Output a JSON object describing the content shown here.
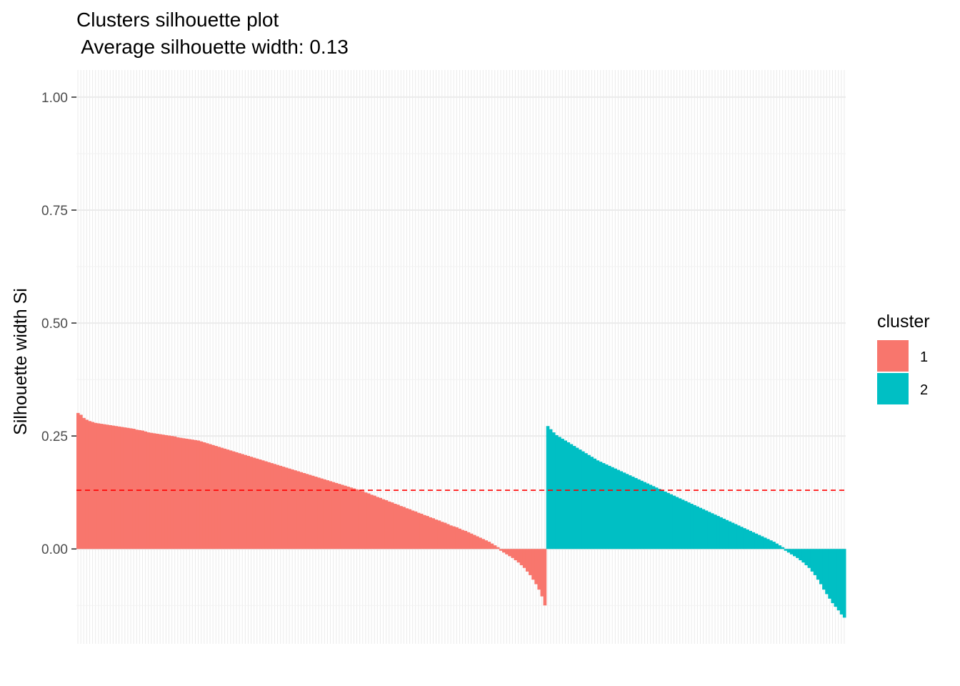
{
  "chart_data": {
    "type": "bar",
    "title": "Clusters silhouette plot",
    "subtitle": " Average silhouette width: 0.13",
    "xlabel": "",
    "ylabel": "Silhouette width Si",
    "ylim": [
      -0.21,
      1.06
    ],
    "yticks": [
      0.0,
      0.25,
      0.5,
      0.75,
      1.0
    ],
    "ytick_labels": [
      "0.00",
      "0.25",
      "0.50",
      "0.75",
      "1.00"
    ],
    "grid": true,
    "legend_title": "cluster",
    "legend_position": "right",
    "average_silhouette_width": 0.13,
    "series": [
      {
        "name": "1",
        "color": "#F8766D",
        "values": [
          0.301,
          0.297,
          0.29,
          0.286,
          0.283,
          0.281,
          0.279,
          0.278,
          0.277,
          0.276,
          0.275,
          0.274,
          0.273,
          0.272,
          0.271,
          0.27,
          0.269,
          0.268,
          0.267,
          0.266,
          0.264,
          0.263,
          0.262,
          0.26,
          0.258,
          0.257,
          0.256,
          0.255,
          0.254,
          0.253,
          0.252,
          0.251,
          0.25,
          0.249,
          0.247,
          0.246,
          0.245,
          0.244,
          0.243,
          0.242,
          0.241,
          0.24,
          0.238,
          0.236,
          0.234,
          0.232,
          0.23,
          0.228,
          0.226,
          0.224,
          0.222,
          0.22,
          0.218,
          0.216,
          0.214,
          0.212,
          0.21,
          0.208,
          0.206,
          0.204,
          0.202,
          0.2,
          0.198,
          0.196,
          0.194,
          0.192,
          0.19,
          0.188,
          0.186,
          0.184,
          0.182,
          0.18,
          0.178,
          0.176,
          0.174,
          0.172,
          0.17,
          0.168,
          0.166,
          0.164,
          0.162,
          0.16,
          0.158,
          0.156,
          0.154,
          0.152,
          0.15,
          0.148,
          0.146,
          0.144,
          0.142,
          0.14,
          0.138,
          0.136,
          0.134,
          0.132,
          0.13,
          0.128,
          0.125,
          0.123,
          0.12,
          0.118,
          0.115,
          0.113,
          0.11,
          0.108,
          0.105,
          0.103,
          0.1,
          0.098,
          0.095,
          0.093,
          0.09,
          0.088,
          0.085,
          0.083,
          0.08,
          0.078,
          0.075,
          0.073,
          0.07,
          0.068,
          0.065,
          0.063,
          0.06,
          0.058,
          0.055,
          0.052,
          0.05,
          0.048,
          0.045,
          0.042,
          0.04,
          0.037,
          0.034,
          0.031,
          0.028,
          0.025,
          0.022,
          0.019,
          0.016,
          0.012,
          0.008,
          0.004,
          -0.004,
          -0.008,
          -0.012,
          -0.016,
          -0.02,
          -0.025,
          -0.03,
          -0.036,
          -0.042,
          -0.05,
          -0.058,
          -0.068,
          -0.078,
          -0.09,
          -0.105,
          -0.125
        ]
      },
      {
        "name": "2",
        "color": "#00BFC4",
        "values": [
          0.272,
          0.265,
          0.258,
          0.252,
          0.248,
          0.244,
          0.24,
          0.236,
          0.232,
          0.228,
          0.224,
          0.22,
          0.216,
          0.212,
          0.208,
          0.204,
          0.2,
          0.196,
          0.193,
          0.19,
          0.187,
          0.184,
          0.181,
          0.178,
          0.175,
          0.172,
          0.169,
          0.166,
          0.163,
          0.16,
          0.157,
          0.154,
          0.151,
          0.148,
          0.145,
          0.142,
          0.139,
          0.136,
          0.133,
          0.13,
          0.127,
          0.124,
          0.121,
          0.118,
          0.115,
          0.112,
          0.109,
          0.106,
          0.103,
          0.1,
          0.097,
          0.094,
          0.091,
          0.088,
          0.085,
          0.082,
          0.079,
          0.076,
          0.073,
          0.07,
          0.067,
          0.064,
          0.061,
          0.058,
          0.055,
          0.052,
          0.049,
          0.046,
          0.043,
          0.04,
          0.037,
          0.034,
          0.031,
          0.028,
          0.025,
          0.022,
          0.019,
          0.016,
          0.012,
          0.008,
          0.004,
          -0.004,
          -0.008,
          -0.012,
          -0.016,
          -0.02,
          -0.025,
          -0.03,
          -0.036,
          -0.042,
          -0.05,
          -0.058,
          -0.068,
          -0.078,
          -0.09,
          -0.1,
          -0.11,
          -0.12,
          -0.128,
          -0.136,
          -0.145,
          -0.152
        ]
      }
    ]
  }
}
